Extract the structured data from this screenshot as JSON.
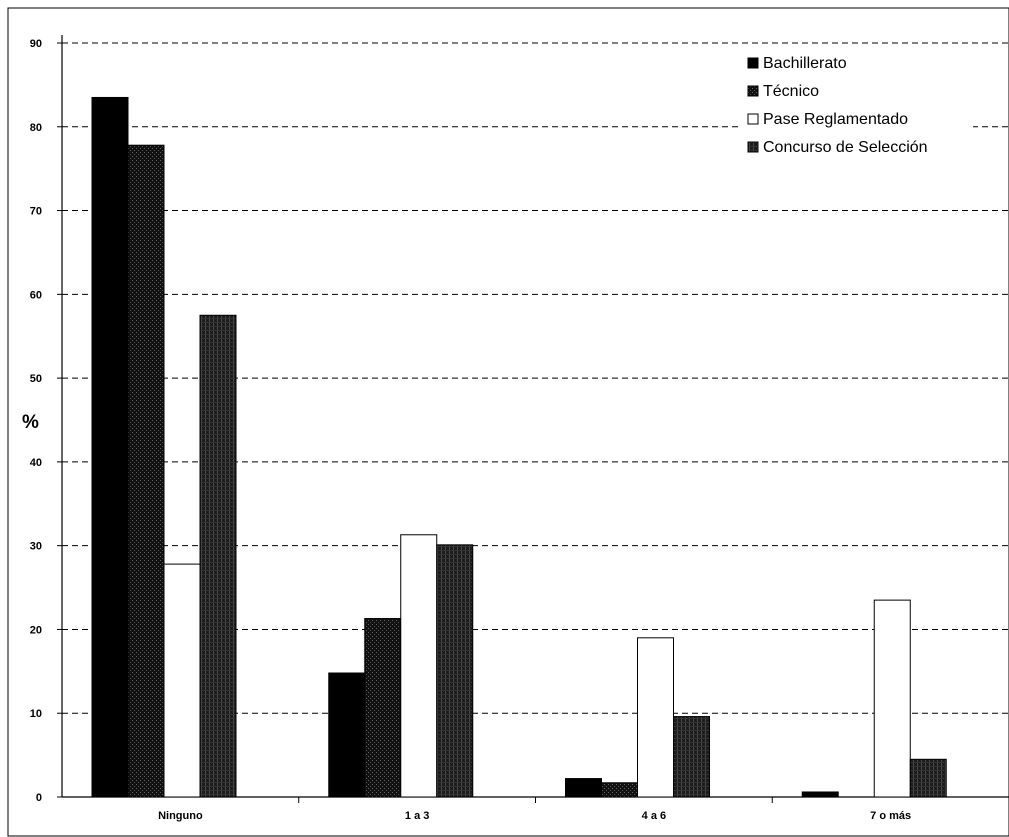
{
  "chart_data": {
    "type": "bar",
    "title": "",
    "xlabel": "",
    "ylabel": "%",
    "ylim": [
      0,
      90
    ],
    "yticks": [
      0,
      10,
      20,
      30,
      40,
      50,
      60,
      70,
      80,
      90
    ],
    "grid": true,
    "legend_position": "top-right",
    "categories": [
      "Ninguno",
      "1 a 3",
      "4 a 6",
      "7 o más"
    ],
    "series": [
      {
        "name": "Bachillerato",
        "values": [
          83.5,
          14.8,
          2.2,
          0.6
        ],
        "color": "#000000",
        "pattern": "solid"
      },
      {
        "name": "Técnico",
        "values": [
          77.8,
          21.3,
          1.7,
          0.0
        ],
        "color": "#111111",
        "pattern": "dots"
      },
      {
        "name": "Pase Reglamentado",
        "values": [
          27.8,
          31.3,
          19.0,
          23.5
        ],
        "color": "#ffffff",
        "pattern": "none"
      },
      {
        "name": "Concurso de Selección",
        "values": [
          57.5,
          30.1,
          9.6,
          4.5
        ],
        "color": "#1a1a1a",
        "pattern": "hatch"
      }
    ]
  }
}
